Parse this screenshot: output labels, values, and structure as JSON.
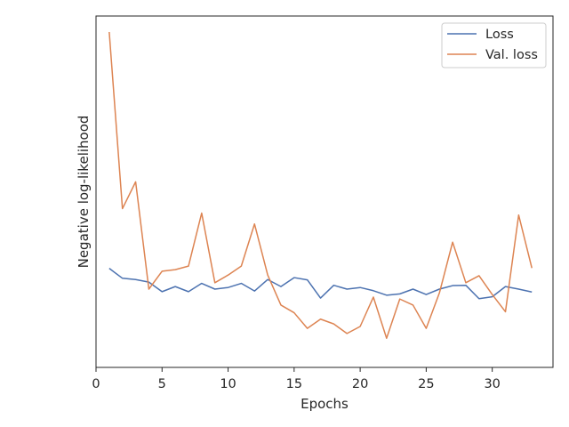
{
  "chart_data": {
    "type": "line",
    "title": "",
    "xlabel": "Epochs",
    "ylabel": "Negative log-likelihood",
    "xlim": [
      0,
      34.6
    ],
    "ylim": [
      0,
      1
    ],
    "x_ticks": [
      0,
      5,
      10,
      15,
      20,
      25,
      30
    ],
    "y_ticks_shown": false,
    "grid": false,
    "legend_position": "top-right",
    "x": [
      1,
      2,
      3,
      4,
      5,
      6,
      7,
      8,
      9,
      10,
      11,
      12,
      13,
      14,
      15,
      16,
      17,
      18,
      19,
      20,
      21,
      22,
      23,
      24,
      25,
      26,
      27,
      28,
      29,
      30,
      31,
      32,
      33
    ],
    "series": [
      {
        "name": "Loss",
        "color": "#4c72b0",
        "values": [
          0.26,
          0.229,
          0.225,
          0.217,
          0.187,
          0.203,
          0.187,
          0.213,
          0.195,
          0.2,
          0.213,
          0.189,
          0.225,
          0.203,
          0.231,
          0.224,
          0.167,
          0.207,
          0.195,
          0.2,
          0.19,
          0.176,
          0.18,
          0.195,
          0.178,
          0.195,
          0.206,
          0.207,
          0.165,
          0.171,
          0.203,
          0.195,
          0.186
        ]
      },
      {
        "name": "Val. loss",
        "color": "#dd8452",
        "values": [
          1.0,
          0.447,
          0.531,
          0.195,
          0.251,
          0.256,
          0.267,
          0.433,
          0.215,
          0.239,
          0.267,
          0.399,
          0.239,
          0.145,
          0.121,
          0.072,
          0.101,
          0.086,
          0.056,
          0.078,
          0.17,
          0.041,
          0.164,
          0.145,
          0.072,
          0.183,
          0.342,
          0.215,
          0.237,
          0.178,
          0.124,
          0.427,
          0.261
        ]
      }
    ]
  }
}
